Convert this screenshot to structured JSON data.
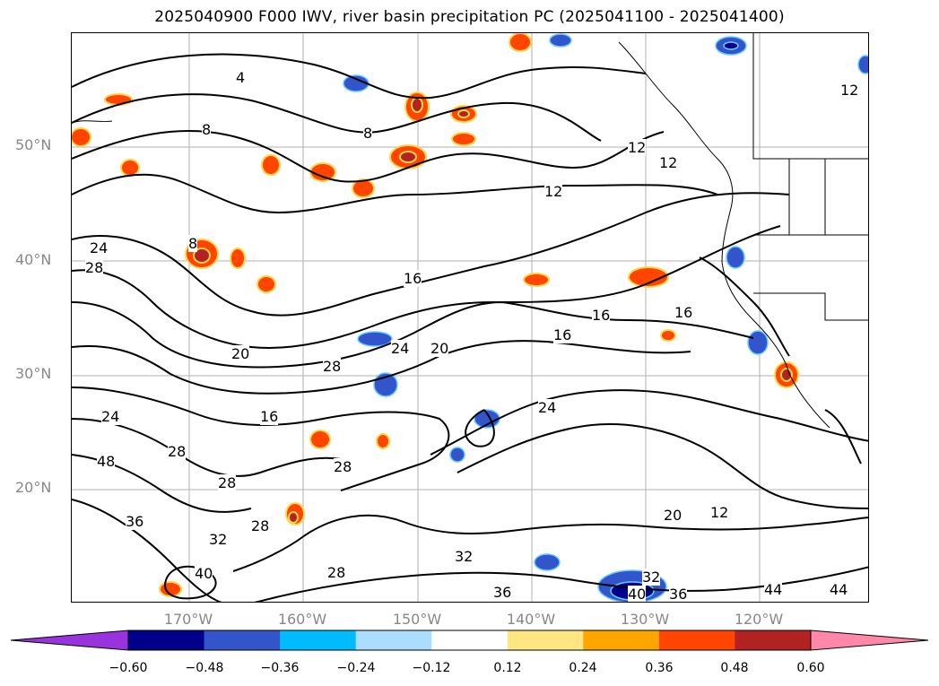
{
  "title": "2025040900 F000 IWV, river basin precipitation PC (2025041100 - 2025041400)",
  "lat_labels": [
    "50°N",
    "40°N",
    "30°N",
    "20°N"
  ],
  "lon_labels": [
    "170°W",
    "160°W",
    "150°W",
    "140°W",
    "130°W",
    "120°W"
  ],
  "contour_labels": [
    "4",
    "8",
    "8",
    "8",
    "12",
    "12",
    "12",
    "12",
    "12",
    "16",
    "16",
    "16",
    "16",
    "16",
    "20",
    "20",
    "20",
    "24",
    "24",
    "24",
    "24",
    "28",
    "28",
    "28",
    "28",
    "28",
    "28",
    "28",
    "32",
    "32",
    "32",
    "36",
    "36",
    "36",
    "40",
    "40",
    "44",
    "44",
    "48"
  ],
  "colorbar": {
    "ticks": [
      "−0.60",
      "−0.48",
      "−0.36",
      "−0.24",
      "−0.12",
      "0.12",
      "0.24",
      "0.36",
      "0.48",
      "0.60"
    ],
    "colors": [
      "#9933dd",
      "#00008b",
      "#3355cc",
      "#00bbff",
      "#aaddff",
      "#ffffff",
      "#ffe680",
      "#ffa500",
      "#ff4500",
      "#b22222",
      "#ff88aa"
    ]
  }
}
